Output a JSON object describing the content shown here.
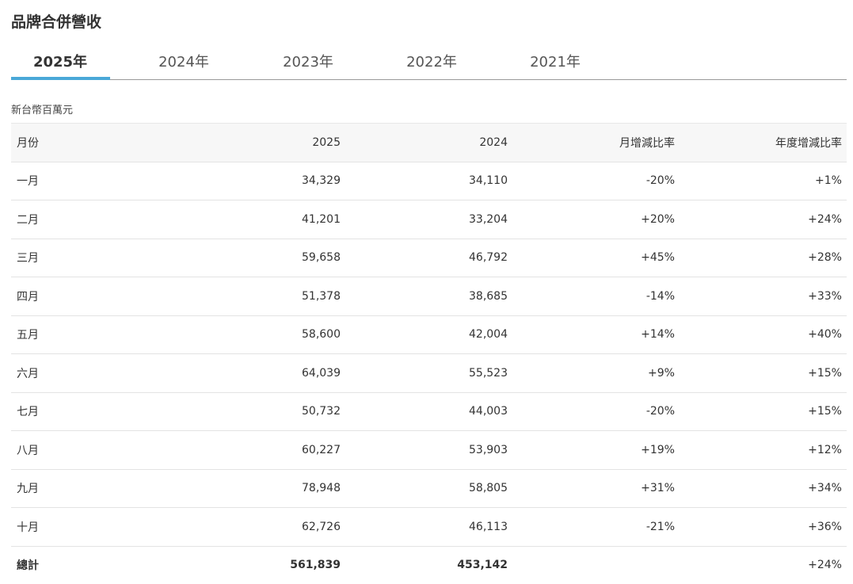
{
  "header": {
    "title": "品牌合併營收"
  },
  "tabs": {
    "items": [
      "2025年",
      "2024年",
      "2023年",
      "2022年",
      "2021年"
    ],
    "active_index": 0,
    "accent_color": "#4aa8d8"
  },
  "unit": "新台幣百萬元",
  "table": {
    "columns": [
      "月份",
      "2025",
      "2024",
      "月增減比率",
      "年度增減比率"
    ],
    "rows": [
      [
        "一月",
        "34,329",
        "34,110",
        "-20%",
        "+1%"
      ],
      [
        "二月",
        "41,201",
        "33,204",
        "+20%",
        "+24%"
      ],
      [
        "三月",
        "59,658",
        "46,792",
        "+45%",
        "+28%"
      ],
      [
        "四月",
        "51,378",
        "38,685",
        "-14%",
        "+33%"
      ],
      [
        "五月",
        "58,600",
        "42,004",
        "+14%",
        "+40%"
      ],
      [
        "六月",
        "64,039",
        "55,523",
        "+9%",
        "+15%"
      ],
      [
        "七月",
        "50,732",
        "44,003",
        "-20%",
        "+15%"
      ],
      [
        "八月",
        "60,227",
        "53,903",
        "+19%",
        "+12%"
      ],
      [
        "九月",
        "78,948",
        "58,805",
        "+31%",
        "+34%"
      ],
      [
        "十月",
        "62,726",
        "46,113",
        "-21%",
        "+36%"
      ]
    ],
    "total": {
      "label": "總計",
      "values": [
        "561,839",
        "453,142"
      ],
      "yoy": "+24%"
    }
  }
}
